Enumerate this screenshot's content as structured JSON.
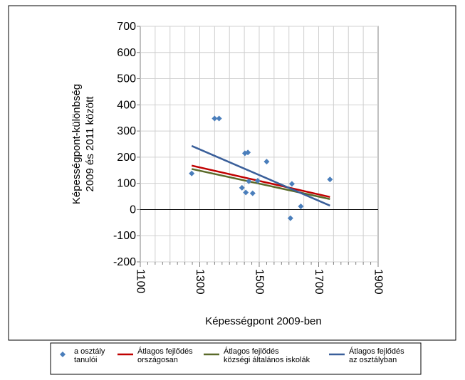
{
  "chart_data": {
    "type": "scatter",
    "title": "",
    "xlabel": "Képességpont 2009-ben",
    "ylabel_lines": [
      "Képességpont-különbség",
      "2009 és 2011 között"
    ],
    "xlim": [
      1100,
      1900
    ],
    "ylim": [
      -200,
      700
    ],
    "x_ticks": [
      1100,
      1300,
      1500,
      1700,
      1900
    ],
    "y_ticks": [
      -200,
      -100,
      0,
      100,
      200,
      300,
      400,
      500,
      600,
      700
    ],
    "grid": true,
    "legend_position": "bottom",
    "points": {
      "name_lines": [
        "a osztály",
        "tanulói"
      ],
      "color": "#4A7EBB",
      "x": [
        1273,
        1350,
        1365,
        1442,
        1452,
        1455,
        1462,
        1465,
        1478,
        1495,
        1525,
        1605,
        1610,
        1640,
        1738
      ],
      "y": [
        138,
        348,
        348,
        83,
        215,
        65,
        218,
        108,
        62,
        110,
        183,
        -33,
        98,
        12,
        115
      ]
    },
    "lines": [
      {
        "name_lines": [
          "Átlagos fejlődés",
          "országosan"
        ],
        "color": "#C00000",
        "x": [
          1273,
          1738
        ],
        "y": [
          168,
          48
        ]
      },
      {
        "name_lines": [
          "Átlagos fejlődés",
          "községi általános iskolák"
        ],
        "color": "#5A6A2A",
        "x": [
          1273,
          1738
        ],
        "y": [
          155,
          40
        ]
      },
      {
        "name_lines": [
          "Átlagos fejlődés",
          "az osztályban"
        ],
        "color": "#3A5F9A",
        "x": [
          1273,
          1738
        ],
        "y": [
          243,
          15
        ]
      }
    ]
  }
}
